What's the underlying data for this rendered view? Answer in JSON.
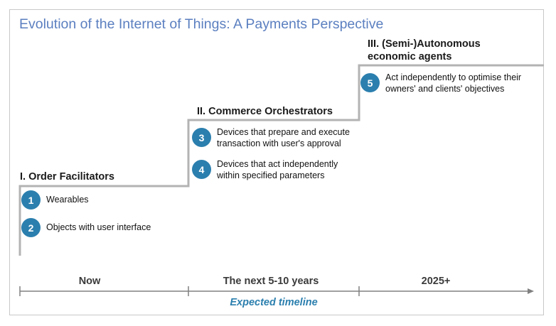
{
  "title": "Evolution of the Internet of Things: A Payments Perspective",
  "stages": [
    {
      "title_lines": [
        "I. Order Facilitators"
      ],
      "items": [
        {
          "number": "1",
          "lines": [
            "Wearables"
          ]
        },
        {
          "number": "2",
          "lines": [
            "Objects with user interface"
          ]
        }
      ]
    },
    {
      "title_lines": [
        "II. Commerce Orchestrators"
      ],
      "items": [
        {
          "number": "3",
          "lines": [
            "Devices that prepare and execute",
            "transaction with user's approval"
          ]
        },
        {
          "number": "4",
          "lines": [
            "Devices that act independently",
            "within specified parameters"
          ]
        }
      ]
    },
    {
      "title_lines": [
        "III. (Semi-)Autonomous",
        "economic agents"
      ],
      "items": [
        {
          "number": "5",
          "lines": [
            "Act independently to optimise their",
            "owners' and clients' objectives"
          ]
        }
      ]
    }
  ],
  "timeline": {
    "labels": [
      "Now",
      "The next 5-10 years",
      "2025+"
    ],
    "caption": "Expected timeline"
  },
  "colors": {
    "title": "#5b7fc0",
    "accent": "#2b7fae",
    "stairs": "#b3b3b3",
    "axis": "#808080"
  }
}
